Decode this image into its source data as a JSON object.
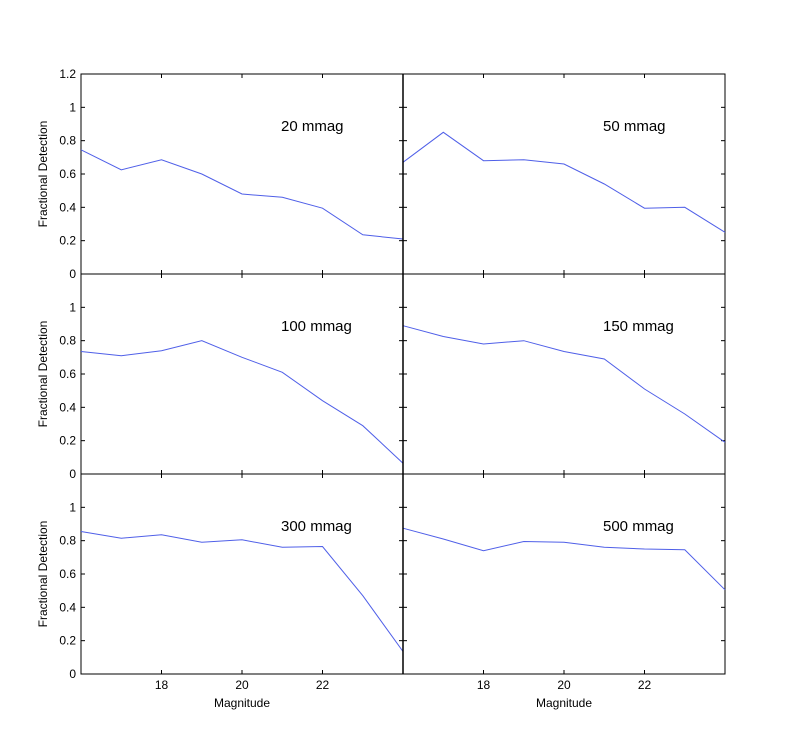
{
  "chart_data": {
    "type": "line",
    "layout": "3x2 grid of panels with shared axes",
    "xlabel": "Magnitude",
    "ylabel": "Fractional Detection",
    "xlim": [
      16,
      24
    ],
    "ylim": [
      0,
      1.2
    ],
    "xticks": [
      18,
      20,
      22
    ],
    "yticks": [
      0,
      0.2,
      0.4,
      0.6,
      0.8,
      1,
      1.2
    ],
    "line_color": "#4f5fe8",
    "grid": false,
    "x": [
      16,
      17,
      18,
      19,
      20,
      21,
      22,
      23,
      24
    ],
    "panels": [
      {
        "title": "20 mmag",
        "values": [
          0.745,
          0.625,
          0.685,
          0.6,
          0.48,
          0.46,
          0.395,
          0.235,
          0.21
        ]
      },
      {
        "title": "50 mmag",
        "values": [
          0.67,
          0.85,
          0.68,
          0.685,
          0.66,
          0.54,
          0.395,
          0.4,
          0.25
        ]
      },
      {
        "title": "100 mmag",
        "values": [
          0.735,
          0.71,
          0.74,
          0.8,
          0.7,
          0.61,
          0.44,
          0.29,
          0.065
        ]
      },
      {
        "title": "150 mmag",
        "values": [
          0.89,
          0.825,
          0.78,
          0.8,
          0.735,
          0.69,
          0.51,
          0.36,
          0.19
        ]
      },
      {
        "title": "300 mmag",
        "values": [
          0.855,
          0.815,
          0.835,
          0.79,
          0.805,
          0.76,
          0.765,
          0.47,
          0.135
        ]
      },
      {
        "title": "500 mmag",
        "values": [
          0.875,
          0.81,
          0.74,
          0.795,
          0.79,
          0.76,
          0.75,
          0.745,
          0.505
        ]
      }
    ]
  }
}
